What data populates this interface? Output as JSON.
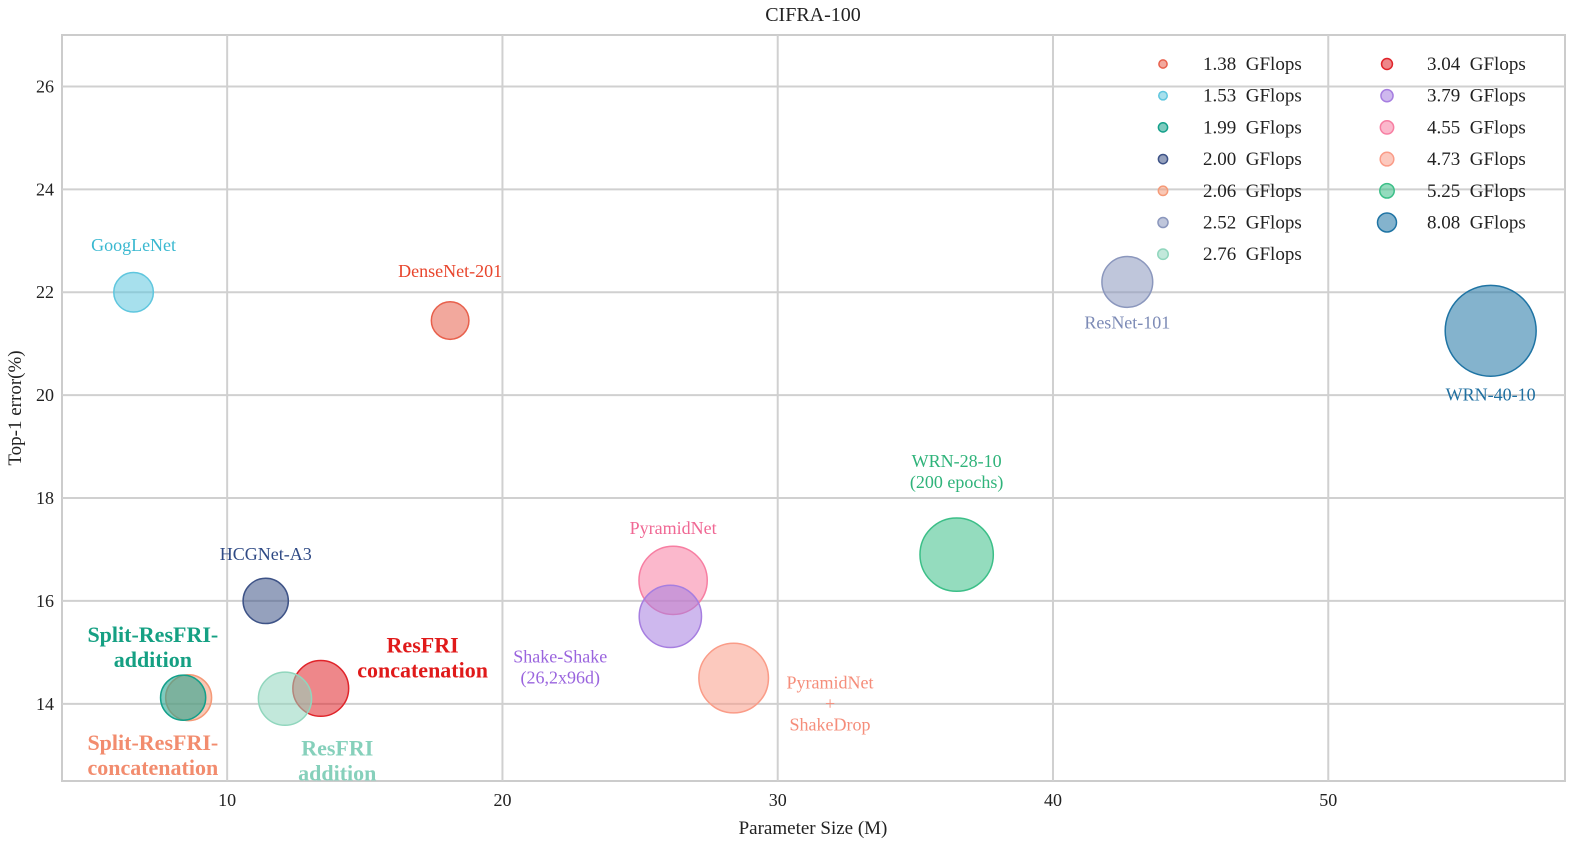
{
  "chart_data": {
    "type": "scatter",
    "title": "CIFRA-100",
    "xlabel": "Parameter Size (M)",
    "ylabel": "Top-1 error(%)",
    "xlim": [
      4,
      58.6
    ],
    "ylim": [
      12.5,
      27
    ],
    "xticks": [
      10,
      20,
      30,
      40,
      50
    ],
    "yticks": [
      14,
      16,
      18,
      20,
      22,
      24,
      26
    ],
    "grid": true,
    "legend_position": "top-right",
    "legend_unit": "GFlops",
    "legend": [
      {
        "value": "1.38",
        "color": "#e8604c"
      },
      {
        "value": "1.53",
        "color": "#5fc6de"
      },
      {
        "value": "1.99",
        "color": "#14a08a"
      },
      {
        "value": "2.00",
        "color": "#3e5387"
      },
      {
        "value": "2.06",
        "color": "#f59a78"
      },
      {
        "value": "2.52",
        "color": "#8b97bd"
      },
      {
        "value": "2.76",
        "color": "#90d6bd"
      },
      {
        "value": "3.04",
        "color": "#e0242a"
      },
      {
        "value": "3.79",
        "color": "#a67ee0"
      },
      {
        "value": "4.55",
        "color": "#f77ea2"
      },
      {
        "value": "4.73",
        "color": "#fa9c88"
      },
      {
        "value": "5.25",
        "color": "#3cbf88"
      },
      {
        "value": "8.08",
        "color": "#1f74a4"
      }
    ],
    "points": [
      {
        "name": "GoogLeNet",
        "label": [
          "GoogLeNet"
        ],
        "x": 6.6,
        "y": 22.0,
        "gflops": 1.53,
        "color": "#5fc6de",
        "label_color": "#39b8d0",
        "bold": false,
        "label_pos": [
          6.6,
          22.8
        ]
      },
      {
        "name": "DenseNet-201",
        "label": [
          "DenseNet-201"
        ],
        "x": 18.1,
        "y": 21.45,
        "gflops": 1.38,
        "color": "#e8604c",
        "label_color": "#e8452c",
        "bold": false,
        "label_pos": [
          18.1,
          22.3
        ]
      },
      {
        "name": "ResNet-101",
        "label": [
          "ResNet-101"
        ],
        "x": 42.7,
        "y": 22.2,
        "gflops": 2.52,
        "color": "#8b97bd",
        "label_color": "#7d8bb6",
        "bold": false,
        "label_pos": [
          42.7,
          21.3
        ]
      },
      {
        "name": "WRN-40-10",
        "label": [
          "WRN-40-10"
        ],
        "x": 55.9,
        "y": 21.25,
        "gflops": 8.08,
        "color": "#1f74a4",
        "label_color": "#1f6fa0",
        "bold": false,
        "label_pos": [
          55.9,
          19.9
        ]
      },
      {
        "name": "WRN-28-10",
        "label": [
          "WRN-28-10",
          "(200 epochs)"
        ],
        "x": 36.5,
        "y": 16.9,
        "gflops": 5.25,
        "color": "#3cbf88",
        "label_color": "#2fb37a",
        "bold": false,
        "label_pos": [
          36.5,
          18.6
        ]
      },
      {
        "name": "PyramidNet",
        "label": [
          "PyramidNet"
        ],
        "x": 26.2,
        "y": 16.4,
        "gflops": 4.55,
        "color": "#f77ea2",
        "label_color": "#f06894",
        "bold": false,
        "label_pos": [
          26.2,
          17.3
        ]
      },
      {
        "name": "Shake-Shake",
        "label": [
          "Shake-Shake",
          "(26,2x96d)"
        ],
        "x": 26.1,
        "y": 15.7,
        "gflops": 3.79,
        "color": "#a67ee0",
        "label_color": "#9a64de",
        "bold": false,
        "label_pos": [
          22.1,
          14.8
        ]
      },
      {
        "name": "PyramidNet + ShakeDrop",
        "label": [
          "PyramidNet",
          "+",
          "ShakeDrop"
        ],
        "x": 28.4,
        "y": 14.5,
        "gflops": 4.73,
        "color": "#fa9c88",
        "label_color": "#f58d7a",
        "bold": false,
        "label_pos": [
          31.9,
          14.3
        ]
      },
      {
        "name": "HCGNet-A3",
        "label": [
          "HCGNet-A3"
        ],
        "x": 11.4,
        "y": 16.0,
        "gflops": 2.0,
        "color": "#3e5387",
        "label_color": "#2f4a85",
        "bold": false,
        "label_pos": [
          11.4,
          16.8
        ]
      },
      {
        "name": "ResFRI concatenation",
        "label": [
          "ResFRI",
          "concatenation"
        ],
        "x": 13.4,
        "y": 14.3,
        "gflops": 3.04,
        "color": "#e0242a",
        "label_color": "#e01a1a",
        "bold": true,
        "label_pos": [
          17.1,
          15.0
        ]
      },
      {
        "name": "ResFRI addition",
        "label": [
          "ResFRI",
          "addition"
        ],
        "x": 12.1,
        "y": 14.1,
        "gflops": 2.76,
        "color": "#90d6bd",
        "label_color": "#86d0bb",
        "bold": true,
        "label_pos": [
          14.0,
          13.0
        ]
      },
      {
        "name": "Split-ResFRI-concatenation",
        "label": [
          "Split-ResFRI-",
          "concatenation"
        ],
        "x": 8.6,
        "y": 14.12,
        "gflops": 2.06,
        "color": "#f59a78",
        "label_color": "#f28c6e",
        "bold": true,
        "label_pos": [
          7.3,
          13.1
        ]
      },
      {
        "name": "Split-ResFRI-addition",
        "label": [
          "Split-ResFRI-",
          "addition"
        ],
        "x": 8.4,
        "y": 14.12,
        "gflops": 1.99,
        "color": "#14a08a",
        "label_color": "#15a083",
        "bold": true,
        "label_pos": [
          7.3,
          15.2
        ]
      }
    ]
  }
}
